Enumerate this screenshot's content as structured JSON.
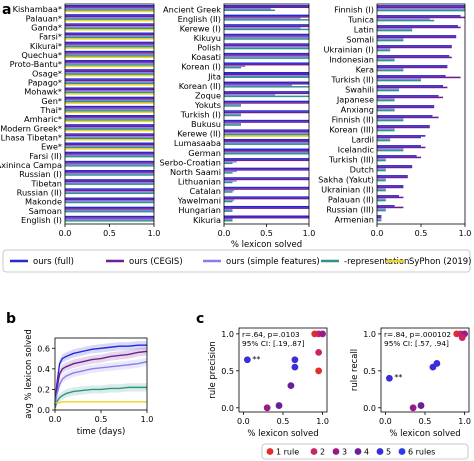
{
  "panel_labels": {
    "a": "a",
    "b": "b",
    "c": "c"
  },
  "colors": {
    "full": "#2727d6",
    "cegis": "#6f1f8f",
    "simple": "#8b7ee8",
    "minus_repr": "#2e948a",
    "syphon": "#f2d21b",
    "rule1": "#e52d2d",
    "rule2": "#c92566",
    "rule3": "#9b1a8a",
    "rule4": "#6a1e9c",
    "rule5": "#3a2fd6",
    "rule6": "#2a3ae6"
  },
  "legend": {
    "items": [
      {
        "key": "full",
        "label": "ours (full)"
      },
      {
        "key": "cegis",
        "label": "ours (CEGIS)"
      },
      {
        "key": "simple",
        "label": "ours (simple features)"
      },
      {
        "key": "minus_repr",
        "label": "-representation"
      },
      {
        "key": "syphon",
        "label": "SyPhon (2019)"
      }
    ]
  },
  "chart_data": [
    {
      "type": "bar",
      "panel": "a",
      "orientation": "horizontal",
      "xlabel": "",
      "xlim": [
        0,
        1
      ],
      "xticks": [
        "0.0",
        "0.5",
        "1.0"
      ],
      "series_names": [
        "ours (full)",
        "ours (CEGIS)",
        "ours (simple features)",
        "-representation",
        "SyPhon (2019)"
      ],
      "categories": [
        "Kishambaa*",
        "Palauan*",
        "Ganda*",
        "Farsi*",
        "Kikurai*",
        "Quechua*",
        "Proto-Bantu*",
        "Osage*",
        "Papago*",
        "Mohawk*",
        "Gen*",
        "Thai*",
        "Amharic*",
        "Modern Greek*",
        "Lhasa Tibetan*",
        "Ewe*",
        "Farsi (II)",
        "Axininca Campa",
        "Russian (I)",
        "Tibetan",
        "Russian (II)",
        "Makonde",
        "Samoan",
        "English (I)"
      ],
      "values": [
        [
          1,
          1,
          1,
          1,
          1
        ],
        [
          1,
          1,
          1,
          1,
          1
        ],
        [
          1,
          1,
          1,
          1,
          1
        ],
        [
          1,
          1,
          1,
          1,
          1
        ],
        [
          1,
          1,
          1,
          1,
          1
        ],
        [
          1,
          1,
          1,
          1,
          1
        ],
        [
          1,
          1,
          1,
          1,
          1
        ],
        [
          1,
          1,
          1,
          1,
          1
        ],
        [
          1,
          1,
          1,
          1,
          1
        ],
        [
          1,
          1,
          1,
          1,
          1
        ],
        [
          1,
          1,
          1,
          1,
          1
        ],
        [
          1,
          1,
          1,
          1,
          1
        ],
        [
          1,
          1,
          1,
          1,
          1
        ],
        [
          1,
          1,
          1,
          1,
          1
        ],
        [
          1,
          1,
          1,
          1,
          1
        ],
        [
          1,
          1,
          1,
          1,
          1
        ],
        [
          1,
          1,
          1,
          1,
          0
        ],
        [
          1,
          1,
          1,
          1,
          0
        ],
        [
          1,
          1,
          1,
          1,
          0
        ],
        [
          1,
          1,
          1,
          1,
          0
        ],
        [
          1,
          1,
          1,
          1,
          0
        ],
        [
          1,
          1,
          1,
          1,
          0
        ],
        [
          1,
          1,
          1,
          1,
          0
        ],
        [
          1,
          1,
          1,
          1,
          0
        ]
      ]
    },
    {
      "type": "bar",
      "panel": "a",
      "orientation": "horizontal",
      "xlabel": "% lexicon solved",
      "xlim": [
        0,
        1
      ],
      "xticks": [
        "0.0",
        "0.5",
        "1.0"
      ],
      "series_names": [
        "ours (full)",
        "ours (CEGIS)",
        "ours (simple features)",
        "-representation",
        "SyPhon (2019)"
      ],
      "categories": [
        "Ancient Greek",
        "English (II)",
        "Kerewe (I)",
        "Kikuyu",
        "Polish",
        "Koasati",
        "Korean (I)",
        "Jita",
        "Korean (II)",
        "Zoque",
        "Yokuts",
        "Turkish (I)",
        "Bukusu",
        "Kerewe (II)",
        "Lumasaaba",
        "German",
        "Serbo-Croatian",
        "North Saami",
        "Lithuanian",
        "Catalan",
        "Yawelmani",
        "Hungarian",
        "Kikuria"
      ],
      "values": [
        [
          1,
          1,
          0.55,
          0.6,
          0
        ],
        [
          1,
          1,
          0.9,
          1,
          0
        ],
        [
          1,
          1,
          0.9,
          1,
          0
        ],
        [
          1,
          1,
          1,
          1,
          0
        ],
        [
          1,
          1,
          1,
          1,
          0
        ],
        [
          1,
          1,
          1,
          1,
          0
        ],
        [
          1,
          1,
          0.25,
          0.2,
          0
        ],
        [
          1,
          1,
          1,
          1,
          0
        ],
        [
          1,
          1,
          0.8,
          1,
          0
        ],
        [
          1,
          1,
          0.6,
          1,
          0
        ],
        [
          1,
          1,
          0.2,
          0.2,
          0
        ],
        [
          1,
          1,
          0.2,
          0.2,
          0
        ],
        [
          1,
          1,
          0.2,
          0.2,
          0
        ],
        [
          1,
          1,
          1,
          1,
          1
        ],
        [
          1,
          1,
          1,
          1,
          0
        ],
        [
          1,
          1,
          1,
          1,
          0
        ],
        [
          1,
          1,
          0.15,
          0.1,
          0
        ],
        [
          1,
          1,
          0.15,
          0.1,
          0
        ],
        [
          1,
          1,
          0.15,
          0.1,
          0
        ],
        [
          1,
          1,
          0.12,
          0.1,
          0
        ],
        [
          1,
          1,
          0.12,
          0.1,
          0
        ],
        [
          1,
          1,
          0.1,
          0.1,
          0
        ],
        [
          1,
          1,
          0.1,
          0.1,
          0
        ]
      ]
    },
    {
      "type": "bar",
      "panel": "a",
      "orientation": "horizontal",
      "xlabel": "",
      "xlim": [
        0,
        1
      ],
      "xticks": [
        "0.0",
        "0.5",
        "1.0"
      ],
      "series_names": [
        "ours (full)",
        "ours (CEGIS)",
        "ours (simple features)",
        "-representation",
        "SyPhon (2019)"
      ],
      "categories": [
        "Finnish (I)",
        "Tunica",
        "Latin",
        "Somali",
        "Ukrainian (I)",
        "Indonesian",
        "Kera",
        "Turkish (II)",
        "Swahili",
        "Japanese",
        "Anxiang",
        "Finnish (II)",
        "Korean (III)",
        "Lardil",
        "Icelandic",
        "Turkish (III)",
        "Dutch",
        "Sakha (Yakut)",
        "Ukrainian (II)",
        "Palauan (II)",
        "Russian (III)",
        "Armenian"
      ],
      "values": [
        [
          1,
          1,
          1,
          1,
          0
        ],
        [
          0.95,
          1,
          0.6,
          0.65,
          0
        ],
        [
          0.92,
          0.95,
          0.4,
          0.4,
          0
        ],
        [
          0.9,
          0.9,
          0.3,
          0.3,
          0
        ],
        [
          0.85,
          0.85,
          0.15,
          0.15,
          0
        ],
        [
          0.82,
          0.85,
          0.2,
          0.2,
          0
        ],
        [
          0.8,
          0.8,
          0.3,
          0.3,
          0
        ],
        [
          0.78,
          0.95,
          0.5,
          0.5,
          0
        ],
        [
          0.75,
          0.8,
          0.25,
          0.25,
          0
        ],
        [
          0.7,
          0.75,
          0.2,
          0.2,
          0
        ],
        [
          0.65,
          0.65,
          0.2,
          0.2,
          0
        ],
        [
          0.63,
          0.7,
          0.3,
          0.3,
          0
        ],
        [
          0.6,
          0.6,
          0.2,
          0.2,
          0
        ],
        [
          0.55,
          0.5,
          0.15,
          0.15,
          0
        ],
        [
          0.5,
          0.55,
          0.3,
          0.3,
          0
        ],
        [
          0.45,
          0.5,
          0.1,
          0.1,
          0
        ],
        [
          0.4,
          0.4,
          0.1,
          0.1,
          0
        ],
        [
          0.35,
          0.35,
          0.1,
          0.1,
          0
        ],
        [
          0.3,
          0.3,
          0.1,
          0.1,
          0
        ],
        [
          0.25,
          0.3,
          0.1,
          0.1,
          0
        ],
        [
          0.2,
          0.3,
          0.1,
          0.1,
          0
        ],
        [
          0.05,
          0.05,
          0.05,
          0.05,
          0
        ]
      ]
    },
    {
      "type": "line",
      "panel": "b",
      "xlabel": "time (days)",
      "ylabel": "avg % lexicon solved",
      "xlim": [
        0,
        1
      ],
      "ylim": [
        0,
        0.7
      ],
      "xticks": [
        "0.0",
        "0.5",
        "1.0"
      ],
      "yticks": [
        "0.0",
        "0.2",
        "0.4",
        "0.6"
      ],
      "x": [
        0,
        0.02,
        0.05,
        0.08,
        0.12,
        0.2,
        0.3,
        0.4,
        0.5,
        0.6,
        0.7,
        0.8,
        0.9,
        1.0
      ],
      "series": [
        {
          "key": "full",
          "values": [
            0.05,
            0.25,
            0.45,
            0.5,
            0.52,
            0.55,
            0.57,
            0.59,
            0.6,
            0.61,
            0.62,
            0.62,
            0.63,
            0.63
          ]
        },
        {
          "key": "cegis",
          "values": [
            0.05,
            0.2,
            0.35,
            0.4,
            0.42,
            0.45,
            0.47,
            0.49,
            0.5,
            0.52,
            0.53,
            0.54,
            0.56,
            0.57
          ]
        },
        {
          "key": "simple",
          "values": [
            0.05,
            0.15,
            0.25,
            0.3,
            0.33,
            0.36,
            0.38,
            0.4,
            0.41,
            0.42,
            0.43,
            0.44,
            0.45,
            0.47
          ]
        },
        {
          "key": "minus_repr",
          "values": [
            0.02,
            0.08,
            0.12,
            0.14,
            0.16,
            0.18,
            0.19,
            0.2,
            0.2,
            0.21,
            0.21,
            0.22,
            0.22,
            0.22
          ]
        },
        {
          "key": "syphon",
          "values": [
            0.07,
            0.07,
            0.07,
            0.08,
            0.08,
            0.08,
            0.08,
            0.08,
            0.08,
            0.08,
            0.08,
            0.08,
            0.08,
            0.08
          ]
        }
      ]
    },
    {
      "type": "scatter",
      "panel": "c-left",
      "xlabel": "% lexicon solved",
      "ylabel": "rule precision",
      "xlim": [
        0,
        1
      ],
      "ylim": [
        0,
        1
      ],
      "xticks": [
        "0.0",
        "0.5",
        "1.0"
      ],
      "yticks": [
        "0.0",
        "0.5",
        "1.0"
      ],
      "annotation": [
        "r=.64, p=.0103",
        "95% CI: [.19,.87]"
      ],
      "star_label": "**",
      "points": [
        {
          "x": 0.05,
          "y": 0.65,
          "rule": 5
        },
        {
          "x": 0.3,
          "y": 0.0,
          "rule": 3
        },
        {
          "x": 0.45,
          "y": 0.03,
          "rule": 4
        },
        {
          "x": 0.6,
          "y": 0.3,
          "rule": 4
        },
        {
          "x": 0.65,
          "y": 0.55,
          "rule": 5
        },
        {
          "x": 0.65,
          "y": 0.65,
          "rule": 5
        },
        {
          "x": 0.95,
          "y": 0.5,
          "rule": 1
        },
        {
          "x": 0.95,
          "y": 0.75,
          "rule": 2
        },
        {
          "x": 0.9,
          "y": 1.0,
          "rule": 1
        },
        {
          "x": 0.95,
          "y": 1.0,
          "rule": 2
        },
        {
          "x": 1.0,
          "y": 1.0,
          "rule": 3
        }
      ]
    },
    {
      "type": "scatter",
      "panel": "c-right",
      "xlabel": "% lexicon solved",
      "ylabel": "rule recall",
      "xlim": [
        0,
        1
      ],
      "ylim": [
        0,
        1
      ],
      "xticks": [
        "0.0",
        "0.5",
        "1.0"
      ],
      "yticks": [
        "0.0",
        "0.5",
        "1.0"
      ],
      "annotation": [
        "r=.84, p=.000102",
        "95% CI: [.57, .94]"
      ],
      "star_label": "**",
      "points": [
        {
          "x": 0.05,
          "y": 0.4,
          "rule": 5
        },
        {
          "x": 0.35,
          "y": 0.0,
          "rule": 3
        },
        {
          "x": 0.45,
          "y": 0.03,
          "rule": 4
        },
        {
          "x": 0.6,
          "y": 0.55,
          "rule": 5
        },
        {
          "x": 0.65,
          "y": 0.6,
          "rule": 5
        },
        {
          "x": 0.9,
          "y": 1.0,
          "rule": 1
        },
        {
          "x": 0.95,
          "y": 1.0,
          "rule": 2
        },
        {
          "x": 1.0,
          "y": 1.0,
          "rule": 3
        },
        {
          "x": 0.97,
          "y": 0.95,
          "rule": 2
        }
      ]
    }
  ],
  "rule_legend": [
    {
      "label": "1 rule",
      "color_key": "rule1"
    },
    {
      "label": "2",
      "color_key": "rule2"
    },
    {
      "label": "3",
      "color_key": "rule3"
    },
    {
      "label": "4",
      "color_key": "rule4"
    },
    {
      "label": "5",
      "color_key": "rule5"
    },
    {
      "label": "6 rules",
      "color_key": "rule6"
    }
  ]
}
